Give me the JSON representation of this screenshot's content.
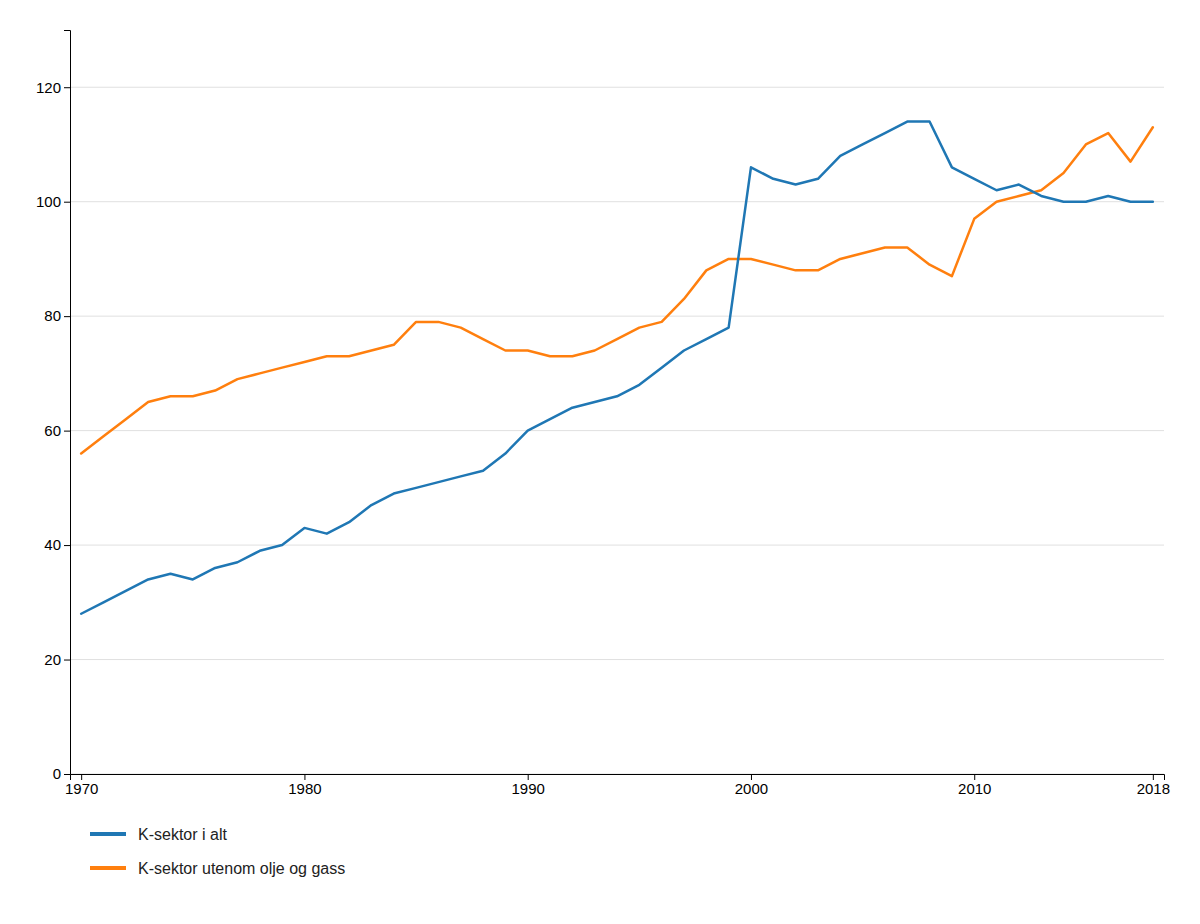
{
  "chart_data": {
    "type": "line",
    "x": [
      1970,
      1971,
      1972,
      1973,
      1974,
      1975,
      1976,
      1977,
      1978,
      1979,
      1980,
      1981,
      1982,
      1983,
      1984,
      1985,
      1986,
      1987,
      1988,
      1989,
      1990,
      1991,
      1992,
      1993,
      1994,
      1995,
      1996,
      1997,
      1998,
      1999,
      2000,
      2001,
      2002,
      2003,
      2004,
      2005,
      2006,
      2007,
      2008,
      2009,
      2010,
      2011,
      2012,
      2013,
      2014,
      2015,
      2016,
      2017,
      2018
    ],
    "series": [
      {
        "name": "K-sektor i alt",
        "values": [
          28,
          30,
          32,
          34,
          35,
          34,
          36,
          37,
          39,
          40,
          43,
          42,
          44,
          47,
          49,
          50,
          51,
          52,
          53,
          56,
          60,
          62,
          64,
          65,
          66,
          68,
          71,
          74,
          76,
          78,
          106,
          104,
          103,
          104,
          108,
          110,
          112,
          114,
          114,
          106,
          104,
          102,
          103,
          101,
          100,
          100,
          101,
          100,
          100
        ]
      },
      {
        "name": "K-sektor utenom olje og gass",
        "values": [
          56,
          59,
          62,
          65,
          66,
          66,
          67,
          69,
          70,
          71,
          72,
          73,
          73,
          74,
          75,
          79,
          79,
          78,
          76,
          74,
          74,
          73,
          73,
          74,
          76,
          78,
          79,
          83,
          88,
          90,
          90,
          89,
          88,
          88,
          90,
          91,
          92,
          92,
          89,
          87,
          97,
          100,
          101,
          102,
          105,
          110,
          112,
          107,
          113
        ]
      }
    ],
    "xlim": [
      1969.5,
      2018.5
    ],
    "xticks": [
      1970,
      1980,
      1990,
      2000,
      2010,
      2018
    ],
    "ylim": [
      0,
      130
    ],
    "yticks": [
      0,
      20,
      40,
      60,
      80,
      100,
      120
    ],
    "grid": true,
    "legend": "bottom"
  }
}
